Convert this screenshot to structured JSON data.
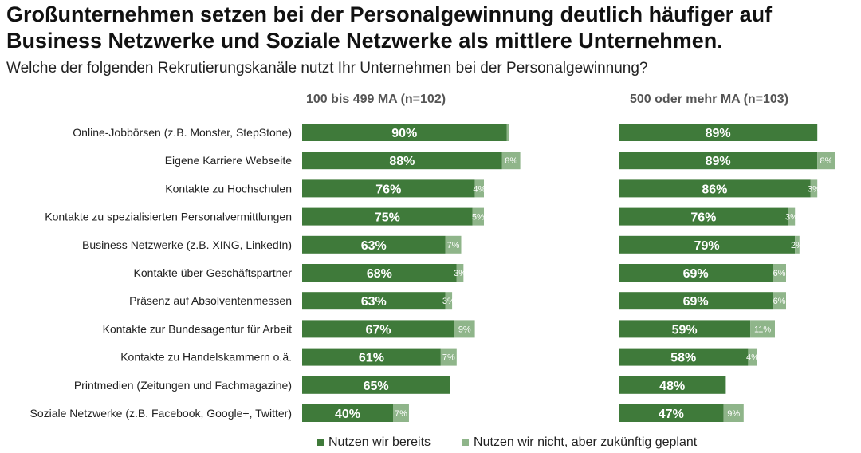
{
  "title": "Großunternehmen setzen bei der Personalgewinnung deutlich häufiger auf Business Netzwerke und Soziale Netzwerke als mittlere Unternehmen.",
  "subtitle": "Welche der folgenden Rekrutierungskanäle nutzt Ihr Unternehmen bei der Personalgewinnung?",
  "colors": {
    "used": "#3f7a3a",
    "planned": "#8fb58a"
  },
  "chart_data": [
    {
      "type": "bar",
      "orientation": "horizontal",
      "stacked": true,
      "title": "100 bis 499 MA (n=102)",
      "categories": [
        "Online-Jobbörsen (z.B. Monster, StepStone)",
        "Eigene Karriere Webseite",
        "Kontakte zu Hochschulen",
        "Kontakte zu spezialisierten Personalvermittlungen",
        "Business Netzwerke (z.B. XING, LinkedIn)",
        "Kontakte über Geschäftspartner",
        "Präsenz auf Absolventenmessen",
        "Kontakte zur Bundesagentur für Arbeit",
        "Kontakte zu Handelskammern o.ä.",
        "Printmedien (Zeitungen und Fachmagazine)",
        "Soziale Netzwerke (z.B. Facebook, Google+, Twitter)"
      ],
      "series": [
        {
          "name": "Nutzen wir bereits",
          "values": [
            90,
            88,
            76,
            75,
            63,
            68,
            63,
            67,
            61,
            65,
            40
          ],
          "labels": [
            "90%",
            "88%",
            "76%",
            "75%",
            "63%",
            "68%",
            "63%",
            "67%",
            "61%",
            "65%",
            "40%"
          ]
        },
        {
          "name": "Nutzen wir nicht, aber zukünftig geplant",
          "values": [
            1,
            8,
            4,
            5,
            7,
            3,
            3,
            9,
            7,
            0,
            7
          ],
          "labels": [
            "",
            "8%",
            "4%",
            "5%",
            "7%",
            "3%",
            "3%",
            "9%",
            "7%",
            "",
            "7%"
          ]
        }
      ],
      "xlim": [
        0,
        100
      ]
    },
    {
      "type": "bar",
      "orientation": "horizontal",
      "stacked": true,
      "title": "500 oder mehr MA (n=103)",
      "categories": [
        "Online-Jobbörsen (z.B. Monster, StepStone)",
        "Eigene Karriere Webseite",
        "Kontakte zu Hochschulen",
        "Kontakte zu spezialisierten Personalvermittlungen",
        "Business Netzwerke (z.B. XING, LinkedIn)",
        "Kontakte über Geschäftspartner",
        "Präsenz auf Absolventenmessen",
        "Kontakte zur Bundesagentur für Arbeit",
        "Kontakte zu Handelskammern o.ä.",
        "Printmedien (Zeitungen und Fachmagazine)",
        "Soziale Netzwerke (z.B. Facebook, Google+, Twitter)"
      ],
      "series": [
        {
          "name": "Nutzen wir bereits",
          "values": [
            89,
            89,
            86,
            76,
            79,
            69,
            69,
            59,
            58,
            48,
            47
          ],
          "labels": [
            "89%",
            "89%",
            "86%",
            "76%",
            "79%",
            "69%",
            "69%",
            "59%",
            "58%",
            "48%",
            "47%"
          ]
        },
        {
          "name": "Nutzen wir nicht, aber zukünftig geplant",
          "values": [
            0,
            8,
            3,
            3,
            2,
            6,
            6,
            11,
            4,
            0,
            9
          ],
          "labels": [
            "",
            "8%",
            "3%",
            "3%",
            "2%",
            "6%",
            "6%",
            "11%",
            "4%",
            "",
            "9%"
          ]
        }
      ],
      "xlim": [
        0,
        100
      ]
    }
  ],
  "legend": {
    "used": "Nutzen wir bereits",
    "planned": "Nutzen wir nicht, aber zukünftig geplant"
  }
}
